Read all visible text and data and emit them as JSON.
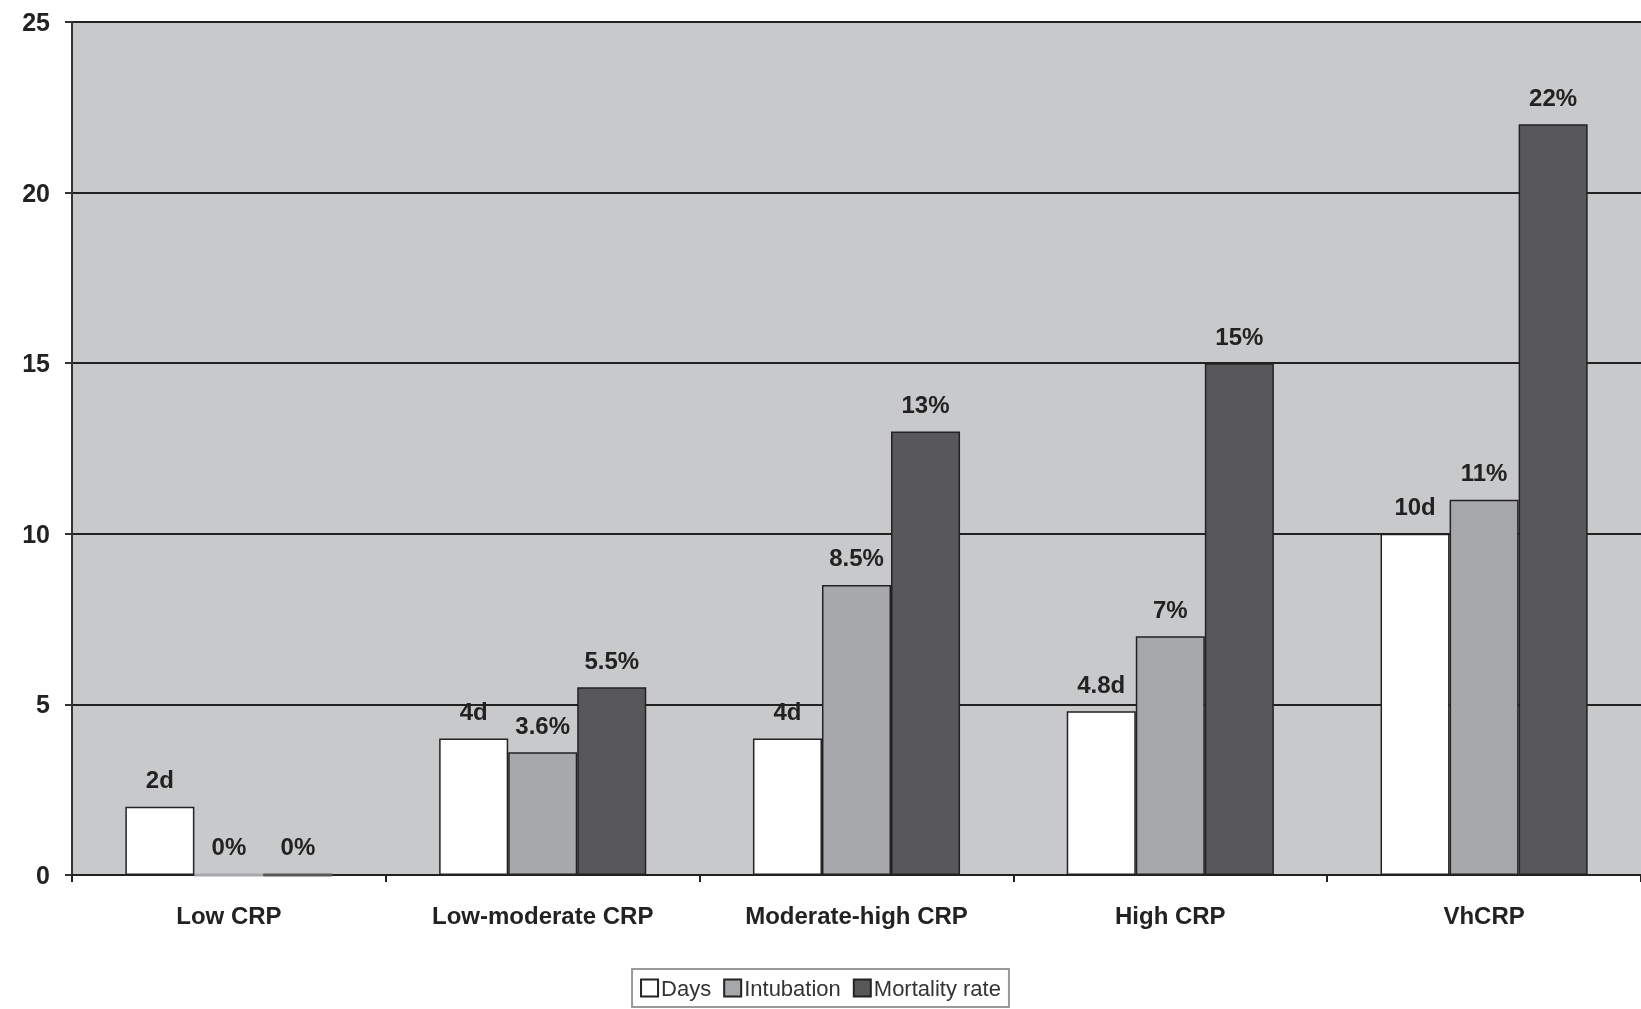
{
  "chart_data": {
    "type": "bar",
    "categories": [
      "Low CRP",
      "Low-moderate CRP",
      "Moderate-high CRP",
      "High CRP",
      "VhCRP"
    ],
    "series": [
      {
        "name": "Days",
        "color": "#ffffff",
        "values": [
          2,
          4,
          4,
          4.8,
          10
        ],
        "value_labels": [
          "2d",
          "4d",
          "4d",
          "4.8d",
          "10d"
        ]
      },
      {
        "name": "Intubation",
        "color": "#a7a8ab",
        "values": [
          0,
          3.6,
          8.5,
          7,
          11
        ],
        "value_labels": [
          "0%",
          "3.6%",
          "8.5%",
          "7%",
          "11%"
        ]
      },
      {
        "name": "Mortality rate",
        "color": "#58585a",
        "values": [
          0,
          5.5,
          13,
          15,
          22
        ],
        "value_labels": [
          "0%",
          "5.5%",
          "13%",
          "15%",
          "22%"
        ]
      }
    ],
    "ylim": [
      0,
      25
    ],
    "yticks": [
      0,
      5,
      10,
      15,
      20,
      25
    ],
    "grid": "y",
    "legend": "bottom"
  }
}
